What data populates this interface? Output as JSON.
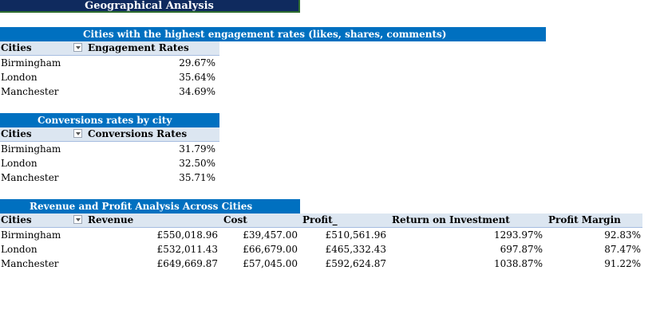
{
  "title": "Geographical Analysis",
  "engagement": {
    "band": "Cities with the highest engagement rates (likes, shares, comments)",
    "col_city": "Cities",
    "col_value": "Engagement Rates",
    "rows": [
      {
        "city": "Birmingham",
        "value": "29.67%"
      },
      {
        "city": "London",
        "value": "35.64%"
      },
      {
        "city": "Manchester",
        "value": "34.69%"
      }
    ]
  },
  "conversion": {
    "band": "Conversions rates by city",
    "col_city": "Cities",
    "col_value": "Conversions Rates",
    "rows": [
      {
        "city": "Birmingham",
        "value": "31.79%"
      },
      {
        "city": "London",
        "value": "32.50%"
      },
      {
        "city": "Manchester",
        "value": "35.71%"
      }
    ]
  },
  "revenue": {
    "band": "Revenue and Profit Analysis Across Cities",
    "col_city": "Cities",
    "col_revenue": "Revenue",
    "col_cost": "Cost",
    "col_profit": "Profit_",
    "col_roi": "Return on Investment",
    "col_margin": "Profit Margin",
    "rows": [
      {
        "city": "Birmingham",
        "revenue": "£550,018.96",
        "cost": "£39,457.00",
        "profit": "£510,561.96",
        "roi": "1293.97%",
        "margin": "92.83%"
      },
      {
        "city": "London",
        "revenue": "£532,011.43",
        "cost": "£66,679.00",
        "profit": "£465,332.43",
        "roi": "697.87%",
        "margin": "87.47%"
      },
      {
        "city": "Manchester",
        "revenue": "£649,669.87",
        "cost": "£57,045.00",
        "profit": "£592,624.87",
        "roi": "1038.87%",
        "margin": "91.22%"
      }
    ]
  }
}
